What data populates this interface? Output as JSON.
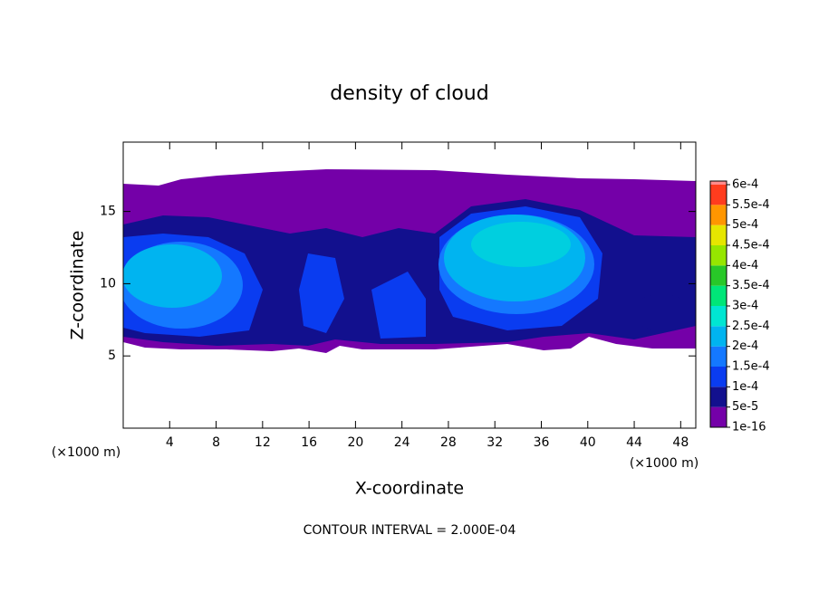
{
  "chart_data": {
    "type": "contour",
    "title": "density of cloud",
    "xlabel": "X-coordinate",
    "ylabel": "Z-coordinate",
    "x_unit_label": "(×1000 m)",
    "y_unit_label": "(×1000 m)",
    "note": "CONTOUR INTERVAL = 2.000E-04",
    "xlim": [
      0,
      49.3
    ],
    "ylim": [
      0,
      19.8
    ],
    "xticks": [
      4,
      8,
      12,
      16,
      20,
      24,
      28,
      32,
      36,
      40,
      44,
      48
    ],
    "yticks": [
      5,
      10,
      15
    ],
    "colorbar": {
      "ticks": [
        {
          "value": 1e-16,
          "label": "1e-16"
        },
        {
          "value": 5e-05,
          "label": "5e-5"
        },
        {
          "value": 0.0001,
          "label": "1e-4"
        },
        {
          "value": 0.00015,
          "label": "1.5e-4"
        },
        {
          "value": 0.0002,
          "label": "2e-4"
        },
        {
          "value": 0.00025,
          "label": "2.5e-4"
        },
        {
          "value": 0.0003,
          "label": "3e-4"
        },
        {
          "value": 0.00035,
          "label": "3.5e-4"
        },
        {
          "value": 0.0004,
          "label": "4e-4"
        },
        {
          "value": 0.00045,
          "label": "4.5e-4"
        },
        {
          "value": 0.0005,
          "label": "5e-4"
        },
        {
          "value": 0.00055,
          "label": "5.5e-4"
        },
        {
          "value": 0.0006,
          "label": "6e-4"
        }
      ],
      "colors": [
        "#7400a8",
        "#12108e",
        "#0a3cf0",
        "#1478ff",
        "#00b4f0",
        "#00e6d2",
        "#00e678",
        "#28c828",
        "#96e600",
        "#e6e600",
        "#ff9600",
        "#ff3c1e",
        "#ff8c8c"
      ]
    }
  }
}
